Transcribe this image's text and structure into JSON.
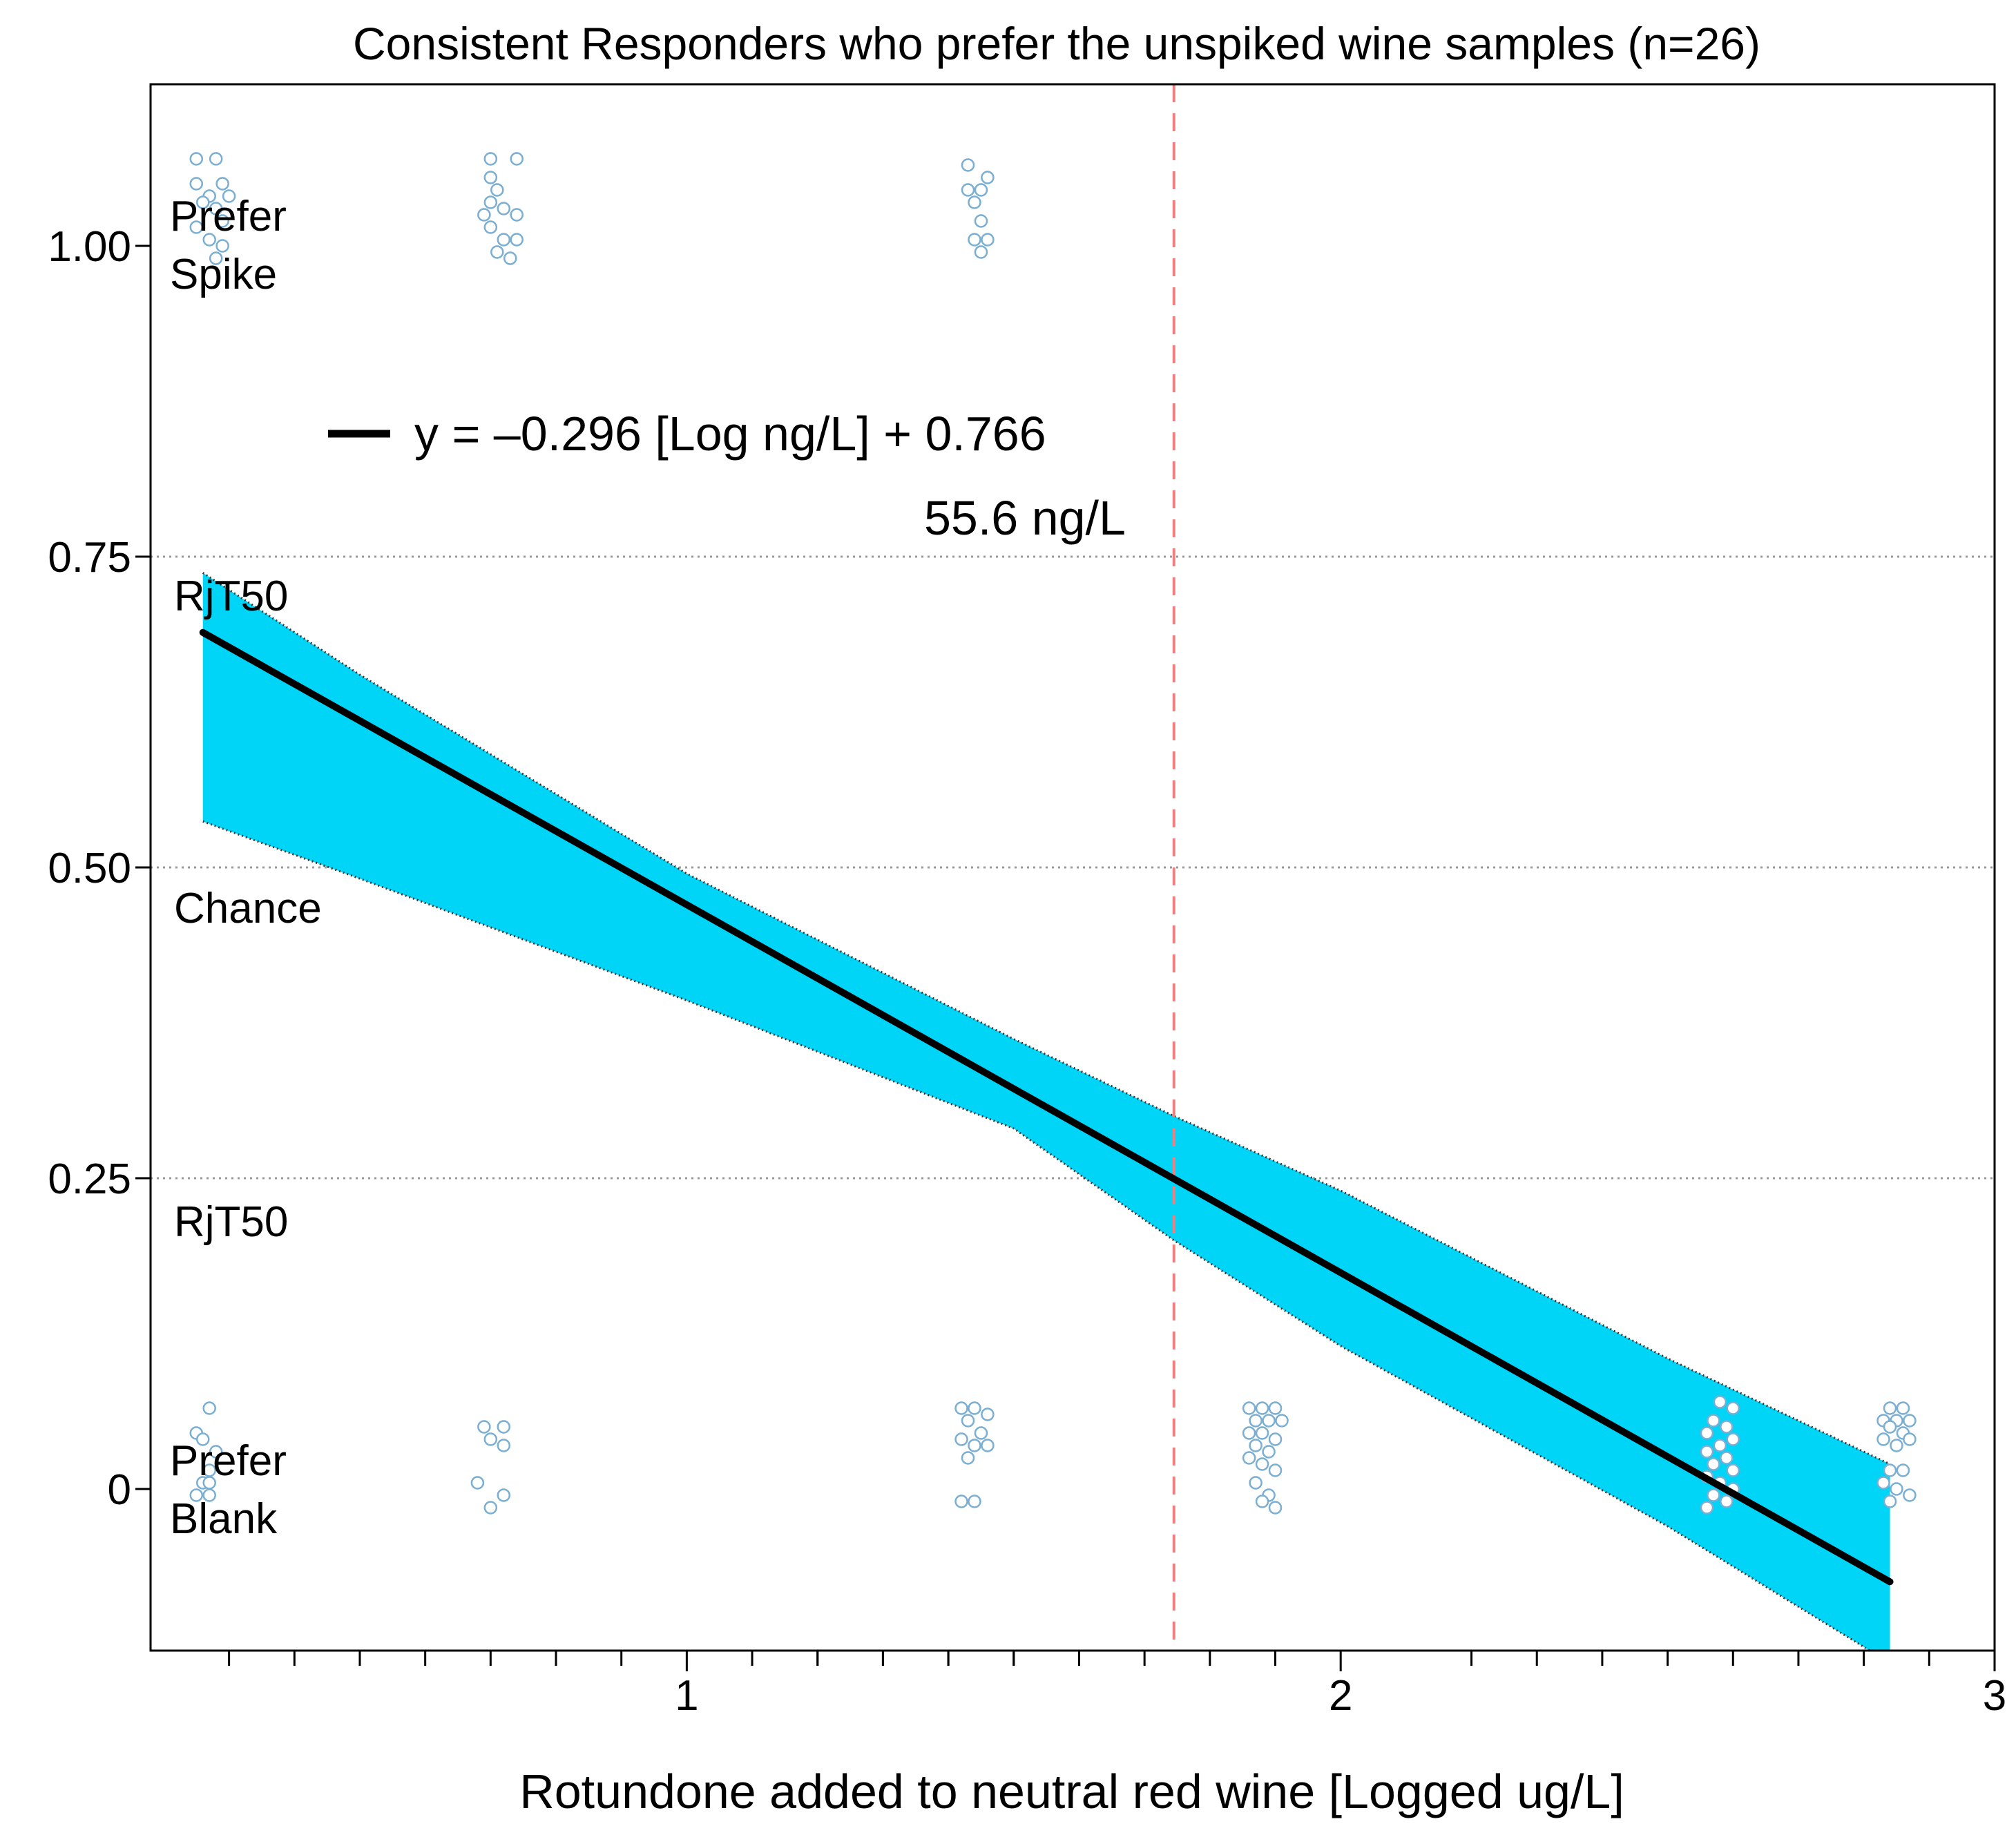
{
  "chart_data": {
    "type": "scatter",
    "title": "Consistent Responders who prefer the unspiked wine samples (n=26)",
    "xlabel": "Rotundone added to neutral red wine [Logged ug/L]",
    "ylabel": "",
    "xlim": [
      0.18,
      3.0
    ],
    "ylim": [
      -0.13,
      1.13
    ],
    "x_ticks": [
      1,
      2,
      3
    ],
    "y_ticks": [
      "0",
      "0.25",
      "0.50",
      "0.75",
      "1.00"
    ],
    "y_tick_values": [
      0,
      0.25,
      0.5,
      0.75,
      1.0
    ],
    "reference_lines": [
      0.25,
      0.5,
      0.75
    ],
    "threshold": {
      "x": 1.745,
      "label": "55.6 ng/L",
      "color": "#f08080"
    },
    "regression": {
      "label": "y = –0.296 [Log ng/L] + 0.766",
      "slope": -0.296,
      "intercept": 0.766,
      "x_range": [
        0.26,
        2.84
      ],
      "color": "#000000"
    },
    "confidence_band": {
      "color": "#00d4f7",
      "x": [
        0.26,
        0.5,
        1.0,
        1.5,
        1.745,
        2.0,
        2.5,
        2.84
      ],
      "lower": [
        0.537,
        0.491,
        0.393,
        0.29,
        0.2,
        0.115,
        -0.03,
        -0.14
      ],
      "upper": [
        0.737,
        0.655,
        0.495,
        0.362,
        0.3,
        0.24,
        0.105,
        0.02
      ]
    },
    "annotations": {
      "prefer_spike": [
        "Prefer",
        "Spike"
      ],
      "rjt50_upper": "RjT50",
      "chance": "Chance",
      "rjt50_lower": "RjT50",
      "prefer_blank": [
        "Prefer",
        "Blank"
      ]
    },
    "series": [
      {
        "marker_color": "#7aaed3",
        "points": [
          [
            0.25,
            1.07
          ],
          [
            0.28,
            1.07
          ],
          [
            0.25,
            1.05
          ],
          [
            0.27,
            1.04
          ],
          [
            0.29,
            1.05
          ],
          [
            0.3,
            1.04
          ],
          [
            0.26,
            1.035
          ],
          [
            0.28,
            1.03
          ],
          [
            0.29,
            1.02
          ],
          [
            0.25,
            1.015
          ],
          [
            0.27,
            1.005
          ],
          [
            0.29,
            1.0
          ],
          [
            0.28,
            0.99
          ],
          [
            0.7,
            1.07
          ],
          [
            0.74,
            1.07
          ],
          [
            0.7,
            1.055
          ],
          [
            0.71,
            1.045
          ],
          [
            0.7,
            1.035
          ],
          [
            0.69,
            1.025
          ],
          [
            0.72,
            1.03
          ],
          [
            0.74,
            1.025
          ],
          [
            0.7,
            1.015
          ],
          [
            0.72,
            1.005
          ],
          [
            0.74,
            1.005
          ],
          [
            0.71,
            0.995
          ],
          [
            0.73,
            0.99
          ],
          [
            1.43,
            1.065
          ],
          [
            1.46,
            1.055
          ],
          [
            1.43,
            1.045
          ],
          [
            1.45,
            1.045
          ],
          [
            1.44,
            1.035
          ],
          [
            1.45,
            1.02
          ],
          [
            1.44,
            1.005
          ],
          [
            1.46,
            1.005
          ],
          [
            1.45,
            0.995
          ],
          [
            0.27,
            0.065
          ],
          [
            0.25,
            0.045
          ],
          [
            0.26,
            0.04
          ],
          [
            0.28,
            0.03
          ],
          [
            0.27,
            0.015
          ],
          [
            0.26,
            0.005
          ],
          [
            0.27,
            0.005
          ],
          [
            0.25,
            -0.005
          ],
          [
            0.27,
            -0.005
          ],
          [
            0.69,
            0.05
          ],
          [
            0.72,
            0.05
          ],
          [
            0.7,
            0.04
          ],
          [
            0.72,
            0.035
          ],
          [
            0.68,
            0.005
          ],
          [
            0.72,
            -0.005
          ],
          [
            0.7,
            -0.015
          ],
          [
            1.42,
            0.065
          ],
          [
            1.44,
            0.065
          ],
          [
            1.46,
            0.06
          ],
          [
            1.43,
            0.055
          ],
          [
            1.45,
            0.045
          ],
          [
            1.42,
            0.04
          ],
          [
            1.44,
            0.035
          ],
          [
            1.46,
            0.035
          ],
          [
            1.43,
            0.025
          ],
          [
            1.42,
            -0.01
          ],
          [
            1.44,
            -0.01
          ],
          [
            1.86,
            0.065
          ],
          [
            1.88,
            0.065
          ],
          [
            1.9,
            0.065
          ],
          [
            1.87,
            0.055
          ],
          [
            1.89,
            0.055
          ],
          [
            1.91,
            0.055
          ],
          [
            1.86,
            0.045
          ],
          [
            1.88,
            0.045
          ],
          [
            1.9,
            0.04
          ],
          [
            1.87,
            0.035
          ],
          [
            1.89,
            0.03
          ],
          [
            1.86,
            0.025
          ],
          [
            1.88,
            0.02
          ],
          [
            1.9,
            0.015
          ],
          [
            1.87,
            0.005
          ],
          [
            1.89,
            -0.005
          ],
          [
            1.88,
            -0.01
          ],
          [
            1.9,
            -0.015
          ],
          [
            2.58,
            0.07
          ],
          [
            2.6,
            0.065
          ],
          [
            2.57,
            0.055
          ],
          [
            2.59,
            0.05
          ],
          [
            2.56,
            0.045
          ],
          [
            2.6,
            0.04
          ],
          [
            2.58,
            0.035
          ],
          [
            2.56,
            0.03
          ],
          [
            2.59,
            0.025
          ],
          [
            2.57,
            0.02
          ],
          [
            2.6,
            0.015
          ],
          [
            2.56,
            0.01
          ],
          [
            2.58,
            0.005
          ],
          [
            2.6,
            0.0
          ],
          [
            2.57,
            -0.005
          ],
          [
            2.59,
            -0.01
          ],
          [
            2.56,
            -0.015
          ],
          [
            2.84,
            0.065
          ],
          [
            2.86,
            0.065
          ],
          [
            2.83,
            0.055
          ],
          [
            2.85,
            0.055
          ],
          [
            2.87,
            0.055
          ],
          [
            2.84,
            0.05
          ],
          [
            2.86,
            0.045
          ],
          [
            2.83,
            0.04
          ],
          [
            2.87,
            0.04
          ],
          [
            2.85,
            0.035
          ],
          [
            2.84,
            0.015
          ],
          [
            2.86,
            0.015
          ],
          [
            2.83,
            0.005
          ],
          [
            2.85,
            0.0
          ],
          [
            2.87,
            -0.005
          ],
          [
            2.84,
            -0.01
          ]
        ]
      }
    ]
  }
}
